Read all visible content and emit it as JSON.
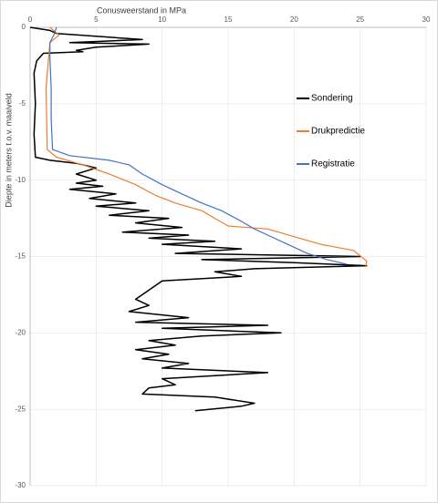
{
  "chart_data": {
    "type": "line",
    "x_label": "Conusweerstand in MPa",
    "y_label": "Diepte in meters t.o.v. maaiveld",
    "xlim": [
      0,
      30
    ],
    "xticks": [
      0,
      5,
      10,
      15,
      20,
      25,
      30
    ],
    "ylim": [
      -30,
      0
    ],
    "yticks": [
      0,
      -5,
      -10,
      -15,
      -20,
      -25,
      -30
    ],
    "grid": true,
    "legend": "right",
    "series": [
      {
        "name": "Sondering",
        "color": "#000000",
        "x": [
          0,
          1.5,
          2,
          8.5,
          3,
          9,
          5,
          3.5,
          4,
          1,
          0.5,
          0.3,
          0.4,
          0.3,
          0.4,
          1.5,
          3.5,
          5,
          3.5,
          5,
          3.5,
          5.5,
          3,
          6.5,
          4.5,
          8,
          5,
          9,
          6,
          10.5,
          8,
          11.5,
          7,
          12,
          9,
          14,
          10,
          16,
          11,
          25,
          13,
          20,
          25.5,
          17,
          14,
          16,
          10,
          9,
          8,
          9,
          7.5,
          12,
          8,
          18,
          10,
          19,
          13,
          9,
          11,
          8,
          10.5,
          8.5,
          12,
          10,
          18,
          10,
          11,
          9,
          8.5,
          14,
          17,
          16,
          12.5
        ],
        "y": [
          0,
          -0.2,
          -0.4,
          -0.8,
          -1.0,
          -1.1,
          -1.3,
          -1.5,
          -1.6,
          -1.7,
          -2.2,
          -3,
          -5,
          -7,
          -8.5,
          -8.7,
          -8.9,
          -9.2,
          -9.6,
          -10,
          -10.2,
          -10.4,
          -10.6,
          -10.9,
          -11.2,
          -11.5,
          -11.7,
          -12,
          -12.3,
          -12.5,
          -12.8,
          -13.1,
          -13.4,
          -13.6,
          -13.8,
          -14.0,
          -14.2,
          -14.5,
          -14.8,
          -15,
          -15.2,
          -15.4,
          -15.6,
          -15.8,
          -16,
          -16.3,
          -16.6,
          -17.2,
          -17.8,
          -18.2,
          -18.6,
          -19.0,
          -19.3,
          -19.5,
          -19.7,
          -20,
          -20.2,
          -20.5,
          -20.8,
          -21.1,
          -21.4,
          -21.7,
          -22.0,
          -22.3,
          -22.6,
          -23,
          -23.4,
          -23.6,
          -24,
          -24.2,
          -24.6,
          -24.8,
          -25.1
        ]
      },
      {
        "name": "Drukpredictie",
        "color": "#ed7d31",
        "x": [
          1.5,
          2.2,
          1.5,
          1.2,
          1.3,
          2,
          4,
          6,
          8,
          9.5,
          11,
          13,
          14,
          15,
          18,
          20,
          22,
          24.5,
          25.5,
          25.4
        ],
        "y": [
          0,
          -0.5,
          -1,
          -4,
          -8,
          -8.5,
          -9,
          -9.6,
          -10.3,
          -11,
          -11.5,
          -12,
          -12.5,
          -13,
          -13.2,
          -13.7,
          -14.2,
          -14.6,
          -15.3,
          -15.7
        ]
      },
      {
        "name": "Registratie",
        "color": "#4472c4",
        "x": [
          2,
          1.8,
          1.5,
          1.5,
          1.6,
          1.6,
          1.7,
          3,
          6,
          7.5,
          8.5,
          10,
          11.5,
          13,
          14.5,
          16,
          17,
          18,
          19.5,
          21,
          22.5,
          24
        ],
        "y": [
          0,
          -0.5,
          -1,
          -2,
          -4,
          -6,
          -8,
          -8.4,
          -8.7,
          -9.0,
          -9.6,
          -10.3,
          -10.9,
          -11.5,
          -12,
          -12.7,
          -13.2,
          -13.6,
          -14.2,
          -14.8,
          -15.2,
          -15.5
        ]
      }
    ]
  }
}
